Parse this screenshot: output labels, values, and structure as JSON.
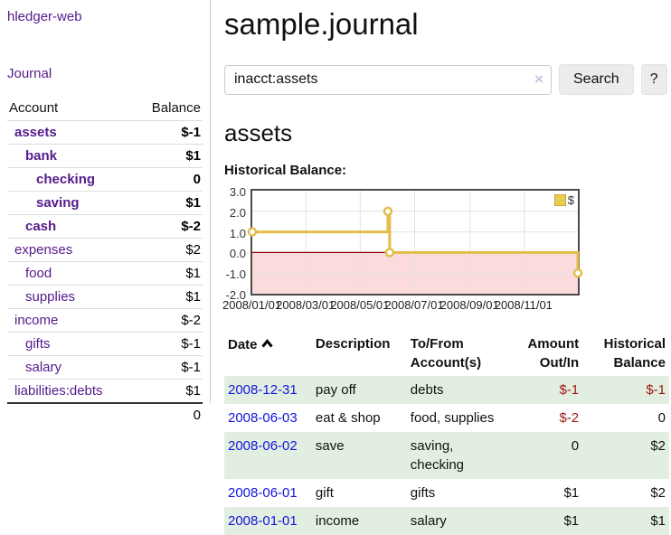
{
  "sidebar": {
    "app_title": "hledger-web",
    "nav": {
      "journal_label": "Journal"
    },
    "accounts_table": {
      "headers": {
        "account": "Account",
        "balance": "Balance"
      },
      "rows": [
        {
          "name": "assets",
          "balance": "$-1"
        },
        {
          "name": "bank",
          "balance": "$1"
        },
        {
          "name": "checking",
          "balance": "0"
        },
        {
          "name": "saving",
          "balance": "$1"
        },
        {
          "name": "cash",
          "balance": "$-2"
        },
        {
          "name": "expenses",
          "balance": "$2"
        },
        {
          "name": "food",
          "balance": "$1"
        },
        {
          "name": "supplies",
          "balance": "$1"
        },
        {
          "name": "income",
          "balance": "$-2"
        },
        {
          "name": "gifts",
          "balance": "$-1"
        },
        {
          "name": "salary",
          "balance": "$-1"
        },
        {
          "name": "liabilities:debts",
          "balance": "$1"
        }
      ],
      "total": "0"
    }
  },
  "main": {
    "title": "sample.journal",
    "search": {
      "value": "inacct:assets",
      "clear_icon": "×",
      "search_button": "Search",
      "help_button": "?"
    },
    "section_title": "assets",
    "chart_label": "Historical Balance:"
  },
  "chart_data": {
    "type": "line",
    "title": "Historical Balance",
    "step": true,
    "series": [
      {
        "name": "$",
        "color": "#e2bd49",
        "dates": [
          "2008-01-01",
          "2008-06-01",
          "2008-06-03",
          "2008-12-31"
        ],
        "values": [
          1,
          2,
          0,
          -1
        ],
        "points": [
          {
            "x": 0,
            "y": 1
          },
          {
            "x": 152,
            "y": 2
          },
          {
            "x": 154,
            "y": 0
          },
          {
            "x": 365,
            "y": -1
          }
        ]
      }
    ],
    "xlim": [
      0,
      365
    ],
    "ylim": [
      -2,
      3
    ],
    "yticks": [
      3.0,
      2.0,
      1.0,
      0.0,
      -1.0,
      -2.0
    ],
    "ytick_labels": [
      "3.0",
      "2.0",
      "1.0",
      "0.0",
      "-1.0",
      "-2.0"
    ],
    "xticks": [
      {
        "pos": 0,
        "label": "2008/01/01"
      },
      {
        "pos": 60,
        "label": "2008/03/01"
      },
      {
        "pos": 121,
        "label": "2008/05/01"
      },
      {
        "pos": 182,
        "label": "2008/07/01"
      },
      {
        "pos": 244,
        "label": "2008/09/01"
      },
      {
        "pos": 305,
        "label": "2008/11/01"
      }
    ],
    "legend": {
      "label": "$",
      "position": "top-right"
    },
    "grid": true,
    "negative_region_color": "#fbdbdb",
    "zero_line_color": "#8b0000",
    "grid_color": "#e2e2e2"
  },
  "register": {
    "date_sort_icon": "chevron-up",
    "headers": {
      "date": "Date",
      "description": "Description",
      "accounts_line1": "To/From",
      "accounts_line2": "Account(s)",
      "amount_line1": "Amount",
      "amount_line2": "Out/In",
      "balance_line1": "Historical",
      "balance_line2": "Balance"
    },
    "rows": [
      {
        "date": "2008-12-31",
        "description": "pay off",
        "accounts": "debts",
        "amount": "$-1",
        "balance": "$-1"
      },
      {
        "date": "2008-06-03",
        "description": "eat & shop",
        "accounts": "food, supplies",
        "amount": "$-2",
        "balance": "0"
      },
      {
        "date": "2008-06-02",
        "description": "save",
        "accounts": "saving,\nchecking",
        "amount": "0",
        "balance": "$2"
      },
      {
        "date": "2008-06-01",
        "description": "gift",
        "accounts": "gifts",
        "amount": "$1",
        "balance": "$2"
      },
      {
        "date": "2008-01-01",
        "description": "income",
        "accounts": "salary",
        "amount": "$1",
        "balance": "$1"
      }
    ]
  }
}
